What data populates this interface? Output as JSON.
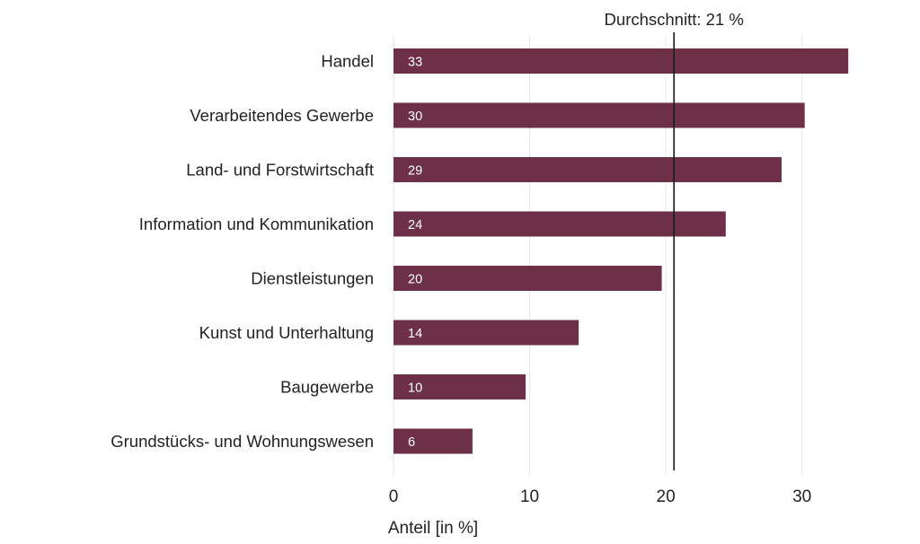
{
  "chart_data": {
    "type": "bar",
    "orientation": "horizontal",
    "categories": [
      "Handel",
      "Verarbeitendes Gewerbe",
      "Land- und Forstwirtschaft",
      "Information und Kommunikation",
      "Dienstleistungen",
      "Kunst und Unterhaltung",
      "Baugewerbe",
      "Grundstücks- und Wohnungswesen"
    ],
    "values": [
      33.4,
      30.2,
      28.5,
      24.4,
      19.7,
      13.6,
      9.7,
      5.8
    ],
    "data_labels": [
      "33",
      "30",
      "29",
      "24",
      "20",
      "14",
      "10",
      "6"
    ],
    "xlabel": "Anteil [in %]",
    "xticks": [
      0,
      10,
      20,
      30
    ],
    "xlim": [
      0,
      35.5
    ],
    "grid": true,
    "reference_line": {
      "value": 20.6,
      "label": "Durchschnitt: 21 %"
    },
    "bar_color": "#6e3049",
    "ref_line_color": "#1a1a1a",
    "grid_color": "#e6e6e6"
  }
}
